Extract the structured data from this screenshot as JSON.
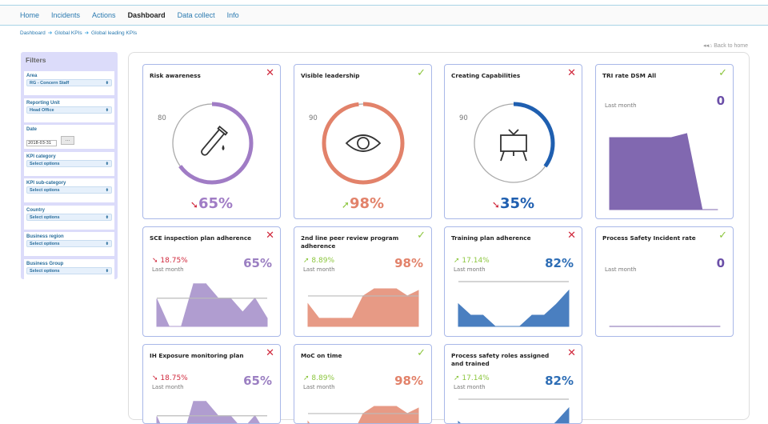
{
  "nav": {
    "items": [
      "Home",
      "Incidents",
      "Actions",
      "Dashboard",
      "Data collect",
      "Info"
    ],
    "active": "Dashboard"
  },
  "breadcrumb": [
    "Dashboard",
    "Global KPIs",
    "Global leading KPIs"
  ],
  "back_to_home": "Back to home",
  "filters": {
    "title": "Filters",
    "groups": [
      {
        "label": "Area",
        "value": "RG - Concern Staff"
      },
      {
        "label": "Reporting Unit",
        "value": "Head Office"
      },
      {
        "label": "Date",
        "value": "2018-03-31",
        "button": "..."
      },
      {
        "label": "KPI category",
        "value": "Select options"
      },
      {
        "label": "KPI sub-category",
        "value": "Select options"
      },
      {
        "label": "Country",
        "value": "Select options"
      },
      {
        "label": "Business region",
        "value": "Select options"
      },
      {
        "label": "Business Group",
        "value": "Select options"
      }
    ]
  },
  "colors": {
    "purple": "#9b7fc2",
    "orange": "#e2826a",
    "blue": "#2d6db5",
    "dark_purple": "#6b4fa8",
    "red": "#d0283c",
    "green": "#8cc63e"
  },
  "gauges": [
    {
      "title": "Risk awareness",
      "status": "fail",
      "target": "80",
      "value": "65%",
      "percent": 65,
      "trend": "down",
      "color": "#a07cc5",
      "icon": "test-tube-icon"
    },
    {
      "title": "Visible leadership",
      "status": "pass",
      "target": "90",
      "value": "98%",
      "percent": 98,
      "trend": "up",
      "color": "#e2826a",
      "icon": "eye-icon"
    },
    {
      "title": "Creating Capabilities",
      "status": "fail",
      "target": "90",
      "value": "35%",
      "percent": 35,
      "trend": "down",
      "color": "#1f5fb0",
      "icon": "presentation-board-icon"
    }
  ],
  "kpis": [
    {
      "title": "TRI rate DSM All",
      "status": "pass",
      "change": "",
      "last_month": "Last month",
      "value": "0",
      "color": "#6b4fa8",
      "fill": "#8168b0",
      "target": null,
      "chart_data": {
        "type": "area",
        "values": [
          90,
          90,
          90,
          90,
          90,
          95,
          0,
          0
        ]
      }
    },
    {
      "title": "SCE inspection plan adherence",
      "status": "fail",
      "change": "18.75%",
      "trend": "down",
      "last_month": "Last month",
      "value": "65%",
      "color": "#9b7fc2",
      "fill": "#b09dd0",
      "target": 63,
      "chart_data": {
        "type": "area",
        "values": [
          61,
          0,
          0,
          95,
          95,
          63,
          63,
          32,
          63,
          18
        ]
      }
    },
    {
      "title": "2nd line peer review program adherence",
      "status": "pass",
      "change": "8.89%",
      "trend": "up",
      "last_month": "Last month",
      "value": "98%",
      "color": "#e2826a",
      "fill": "#e79a85",
      "target": 68,
      "chart_data": {
        "type": "area",
        "values": [
          50,
          18,
          18,
          18,
          18,
          68,
          84,
          84,
          84,
          68,
          80
        ]
      }
    },
    {
      "title": "Training plan adherence",
      "status": "fail",
      "change": "17.14%",
      "trend": "up",
      "last_month": "Last month",
      "value": "82%",
      "color": "#2d6db5",
      "fill": "#4a7fc0",
      "target": 100,
      "chart_data": {
        "type": "area",
        "values": [
          50,
          25,
          25,
          0,
          0,
          0,
          25,
          25,
          50,
          80
        ]
      }
    },
    {
      "title": "Process Safety Incident rate",
      "status": "pass",
      "change": "",
      "last_month": "Last month",
      "value": "0",
      "color": "#6b4fa8",
      "fill": "#8168b0",
      "target": null,
      "chart_data": {
        "type": "area",
        "values": [
          0,
          0,
          0,
          0,
          0,
          0,
          0,
          0
        ]
      }
    },
    {
      "title": "IH Exposure monitoring plan",
      "status": "fail",
      "change": "18.75%",
      "trend": "down",
      "last_month": "Last month",
      "value": "65%",
      "color": "#9b7fc2",
      "fill": "#b09dd0",
      "target": 63,
      "chart_data": {
        "type": "area",
        "values": [
          61,
          0,
          0,
          95,
          95,
          63,
          63,
          32,
          63,
          18
        ]
      }
    },
    {
      "title": "MoC on time",
      "status": "pass",
      "change": "8.89%",
      "trend": "up",
      "last_month": "Last month",
      "value": "98%",
      "color": "#e2826a",
      "fill": "#e79a85",
      "target": 68,
      "chart_data": {
        "type": "area",
        "values": [
          50,
          18,
          18,
          18,
          18,
          68,
          84,
          84,
          84,
          68,
          80
        ]
      }
    },
    {
      "title": "Process safety roles assigned and trained",
      "status": "fail",
      "change": "17.14%",
      "trend": "up",
      "last_month": "Last month",
      "value": "82%",
      "color": "#2d6db5",
      "fill": "#4a7fc0",
      "target": 100,
      "chart_data": {
        "type": "area",
        "values": [
          50,
          25,
          25,
          0,
          0,
          0,
          25,
          25,
          50,
          80
        ]
      }
    }
  ]
}
